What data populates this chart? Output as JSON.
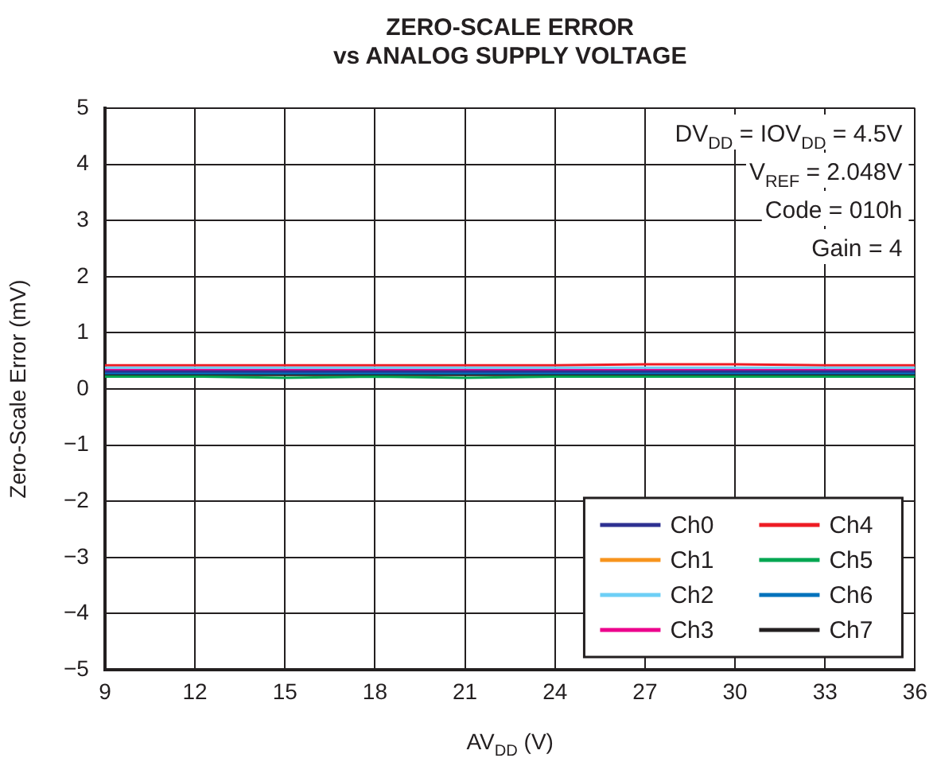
{
  "chart_data": {
    "type": "line",
    "title": "ZERO-SCALE ERROR\nvs ANALOG SUPPLY VOLTAGE",
    "xlabel": "AV$_{DD}$ (V)",
    "ylabel": "Zero-Scale Error (mV)",
    "x": [
      9,
      12,
      15,
      18,
      21,
      24,
      27,
      30,
      33,
      36
    ],
    "series": [
      {
        "name": "Ch0",
        "color": "#2e3192",
        "values": [
          0.31,
          0.31,
          0.31,
          0.31,
          0.31,
          0.31,
          0.31,
          0.31,
          0.31,
          0.31
        ]
      },
      {
        "name": "Ch1",
        "color": "#f7941d",
        "values": [
          null,
          null,
          null,
          null,
          null,
          null,
          null,
          null,
          null,
          null
        ]
      },
      {
        "name": "Ch2",
        "color": "#6dcff6",
        "values": [
          0.38,
          0.38,
          0.38,
          0.38,
          0.38,
          0.38,
          0.38,
          0.38,
          0.38,
          0.38
        ]
      },
      {
        "name": "Ch3",
        "color": "#ec008c",
        "values": [
          0.34,
          0.34,
          0.34,
          0.34,
          0.34,
          0.34,
          0.34,
          0.34,
          0.34,
          0.34
        ]
      },
      {
        "name": "Ch4",
        "color": "#ed1c24",
        "values": [
          0.42,
          0.42,
          0.42,
          0.42,
          0.42,
          0.42,
          0.44,
          0.44,
          0.42,
          0.42
        ]
      },
      {
        "name": "Ch5",
        "color": "#00a651",
        "values": [
          0.22,
          0.22,
          0.2,
          0.22,
          0.2,
          0.22,
          0.22,
          0.22,
          0.22,
          0.22
        ]
      },
      {
        "name": "Ch6",
        "color": "#0072bc",
        "values": [
          0.28,
          0.28,
          0.28,
          0.28,
          0.28,
          0.28,
          0.28,
          0.28,
          0.28,
          0.28
        ]
      },
      {
        "name": "Ch7",
        "color": "#231f20",
        "values": [
          0.25,
          0.25,
          0.25,
          0.25,
          0.25,
          0.25,
          0.25,
          0.25,
          0.25,
          0.25
        ]
      }
    ],
    "xlim": [
      9,
      36
    ],
    "xticks": [
      9,
      12,
      15,
      18,
      21,
      24,
      27,
      30,
      33,
      36
    ],
    "ylim": [
      -5,
      5
    ],
    "yticks": [
      {
        "value": -5,
        "label": "−5"
      },
      {
        "value": -4,
        "label": "−4"
      },
      {
        "value": -3,
        "label": "−3"
      },
      {
        "value": -2,
        "label": "−2"
      },
      {
        "value": -1,
        "label": "−1"
      },
      0,
      1,
      2,
      3,
      4,
      5
    ],
    "grid": true,
    "legend": "bottom right",
    "marker": "none",
    "line_style": "solid",
    "annotations": [
      "DV$_{DD}$ = IOV$_{DD}$ = 4.5V",
      "V$_{REF}$ = 2.048V",
      "Code = 010h",
      "Gain = 4"
    ]
  }
}
